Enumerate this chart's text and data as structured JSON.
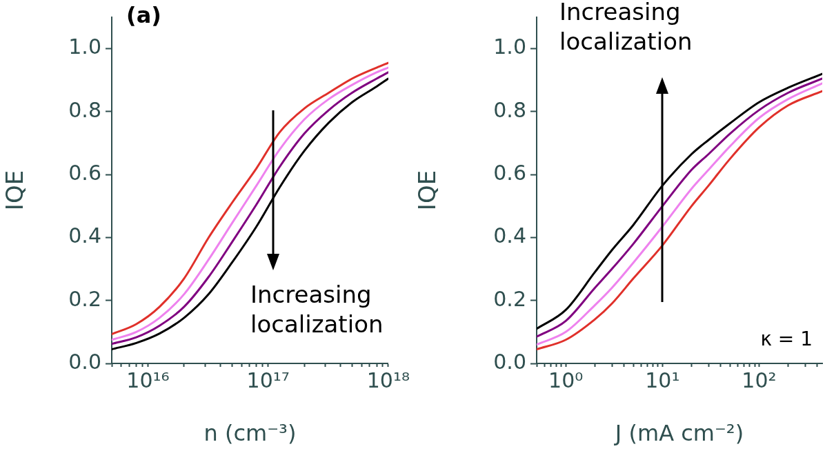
{
  "chart_data": [
    {
      "type": "line",
      "xlabel": "n (cm⁻³)",
      "ylabel": "IQE",
      "log": "x",
      "grid": false,
      "legend": false,
      "marker": "none",
      "line_style": "solid",
      "xlim": [
        5000000000000000.0,
        1e+18
      ],
      "ylim": [
        0,
        1.1
      ],
      "xticks": [
        {
          "value": 5000000000000000.0,
          "label": null
        },
        {
          "value": 6000000000000000.0,
          "label": null
        },
        {
          "value": 7000000000000000.0,
          "label": null
        },
        {
          "value": 8000000000000000.0,
          "label": null
        },
        {
          "value": 9000000000000000.0,
          "label": null
        },
        {
          "value": 1e+16,
          "label": "10¹⁶"
        },
        {
          "value": 2e+16,
          "label": null
        },
        {
          "value": 3e+16,
          "label": null
        },
        {
          "value": 4e+16,
          "label": null
        },
        {
          "value": 5e+16,
          "label": null
        },
        {
          "value": 6e+16,
          "label": null
        },
        {
          "value": 7e+16,
          "label": null
        },
        {
          "value": 8e+16,
          "label": null
        },
        {
          "value": 9e+16,
          "label": null
        },
        {
          "value": 1e+17,
          "label": "10¹⁷"
        },
        {
          "value": 2e+17,
          "label": null
        },
        {
          "value": 3e+17,
          "label": null
        },
        {
          "value": 4e+17,
          "label": null
        },
        {
          "value": 5e+17,
          "label": null
        },
        {
          "value": 6e+17,
          "label": null
        },
        {
          "value": 7e+17,
          "label": null
        },
        {
          "value": 8e+17,
          "label": null
        },
        {
          "value": 9e+17,
          "label": null
        },
        {
          "value": 1e+18,
          "label": "10¹⁸"
        }
      ],
      "yticks": [
        {
          "value": 0,
          "label": "0.0"
        },
        {
          "value": 0.2,
          "label": "0.2"
        },
        {
          "value": 0.4,
          "label": "0.4"
        },
        {
          "value": 0.6,
          "label": "0.6"
        },
        {
          "value": 0.8,
          "label": "0.8"
        },
        {
          "value": 1.0,
          "label": "1.0"
        }
      ],
      "x": [
        5000000000000000.0,
        8000000000000000.0,
        1.25e+16,
        2e+16,
        3.2e+16,
        5e+16,
        8e+16,
        1.25e+17,
        2e+17,
        3.2e+17,
        5e+17,
        8e+17,
        1e+18
      ],
      "series": [
        {
          "color": "#e0302a",
          "values": [
            0.093,
            0.125,
            0.18,
            0.27,
            0.4,
            0.51,
            0.62,
            0.735,
            0.81,
            0.86,
            0.905,
            0.94,
            0.955
          ]
        },
        {
          "color": "#ee82ee",
          "values": [
            0.075,
            0.1,
            0.145,
            0.22,
            0.33,
            0.445,
            0.565,
            0.68,
            0.775,
            0.84,
            0.885,
            0.925,
            0.94
          ]
        },
        {
          "color": "#800080",
          "values": [
            0.062,
            0.083,
            0.12,
            0.18,
            0.275,
            0.385,
            0.505,
            0.625,
            0.73,
            0.805,
            0.86,
            0.905,
            0.925
          ]
        },
        {
          "color": "#000000",
          "values": [
            0.045,
            0.065,
            0.095,
            0.145,
            0.22,
            0.32,
            0.435,
            0.56,
            0.675,
            0.765,
            0.83,
            0.88,
            0.905
          ]
        }
      ],
      "annotations": [
        "(a)",
        "Increasing localization"
      ]
    },
    {
      "type": "line",
      "xlabel": "J (mA cm⁻²)",
      "ylabel": "IQE",
      "log": "x",
      "grid": false,
      "legend": false,
      "marker": "none",
      "line_style": "solid",
      "xlim": [
        0.5,
        450
      ],
      "ylim": [
        0,
        1.1
      ],
      "xticks": [
        {
          "value": 0.5,
          "label": null
        },
        {
          "value": 0.6,
          "label": null
        },
        {
          "value": 0.7,
          "label": null
        },
        {
          "value": 0.8,
          "label": null
        },
        {
          "value": 0.9,
          "label": null
        },
        {
          "value": 1,
          "label": "10⁰"
        },
        {
          "value": 2,
          "label": null
        },
        {
          "value": 3,
          "label": null
        },
        {
          "value": 4,
          "label": null
        },
        {
          "value": 5,
          "label": null
        },
        {
          "value": 6,
          "label": null
        },
        {
          "value": 7,
          "label": null
        },
        {
          "value": 8,
          "label": null
        },
        {
          "value": 9,
          "label": null
        },
        {
          "value": 10,
          "label": "10¹"
        },
        {
          "value": 20,
          "label": null
        },
        {
          "value": 30,
          "label": null
        },
        {
          "value": 40,
          "label": null
        },
        {
          "value": 50,
          "label": null
        },
        {
          "value": 60,
          "label": null
        },
        {
          "value": 70,
          "label": null
        },
        {
          "value": 80,
          "label": null
        },
        {
          "value": 90,
          "label": null
        },
        {
          "value": 100,
          "label": "10²"
        },
        {
          "value": 200,
          "label": null
        },
        {
          "value": 300,
          "label": null
        },
        {
          "value": 400,
          "label": null
        }
      ],
      "yticks": [
        {
          "value": 0,
          "label": "0.0"
        },
        {
          "value": 0.2,
          "label": "0.2"
        },
        {
          "value": 0.4,
          "label": "0.4"
        },
        {
          "value": 0.6,
          "label": "0.6"
        },
        {
          "value": 0.8,
          "label": "0.8"
        },
        {
          "value": 1.0,
          "label": "1.0"
        }
      ],
      "x": [
        0.5,
        1,
        2,
        3,
        5,
        10,
        20,
        30,
        50,
        100,
        200,
        450
      ],
      "series": [
        {
          "color": "#000000",
          "values": [
            0.11,
            0.17,
            0.29,
            0.36,
            0.44,
            0.565,
            0.665,
            0.71,
            0.763,
            0.83,
            0.876,
            0.92
          ]
        },
        {
          "color": "#800080",
          "values": [
            0.085,
            0.135,
            0.24,
            0.3,
            0.38,
            0.5,
            0.615,
            0.665,
            0.73,
            0.805,
            0.86,
            0.905
          ]
        },
        {
          "color": "#ee82ee",
          "values": [
            0.06,
            0.1,
            0.185,
            0.24,
            0.32,
            0.435,
            0.555,
            0.615,
            0.69,
            0.78,
            0.84,
            0.89
          ]
        },
        {
          "color": "#e0302a",
          "values": [
            0.045,
            0.075,
            0.14,
            0.19,
            0.27,
            0.375,
            0.5,
            0.565,
            0.65,
            0.75,
            0.82,
            0.865
          ]
        }
      ],
      "annotations": [
        "Increasing localization",
        "κ = 1"
      ]
    }
  ]
}
